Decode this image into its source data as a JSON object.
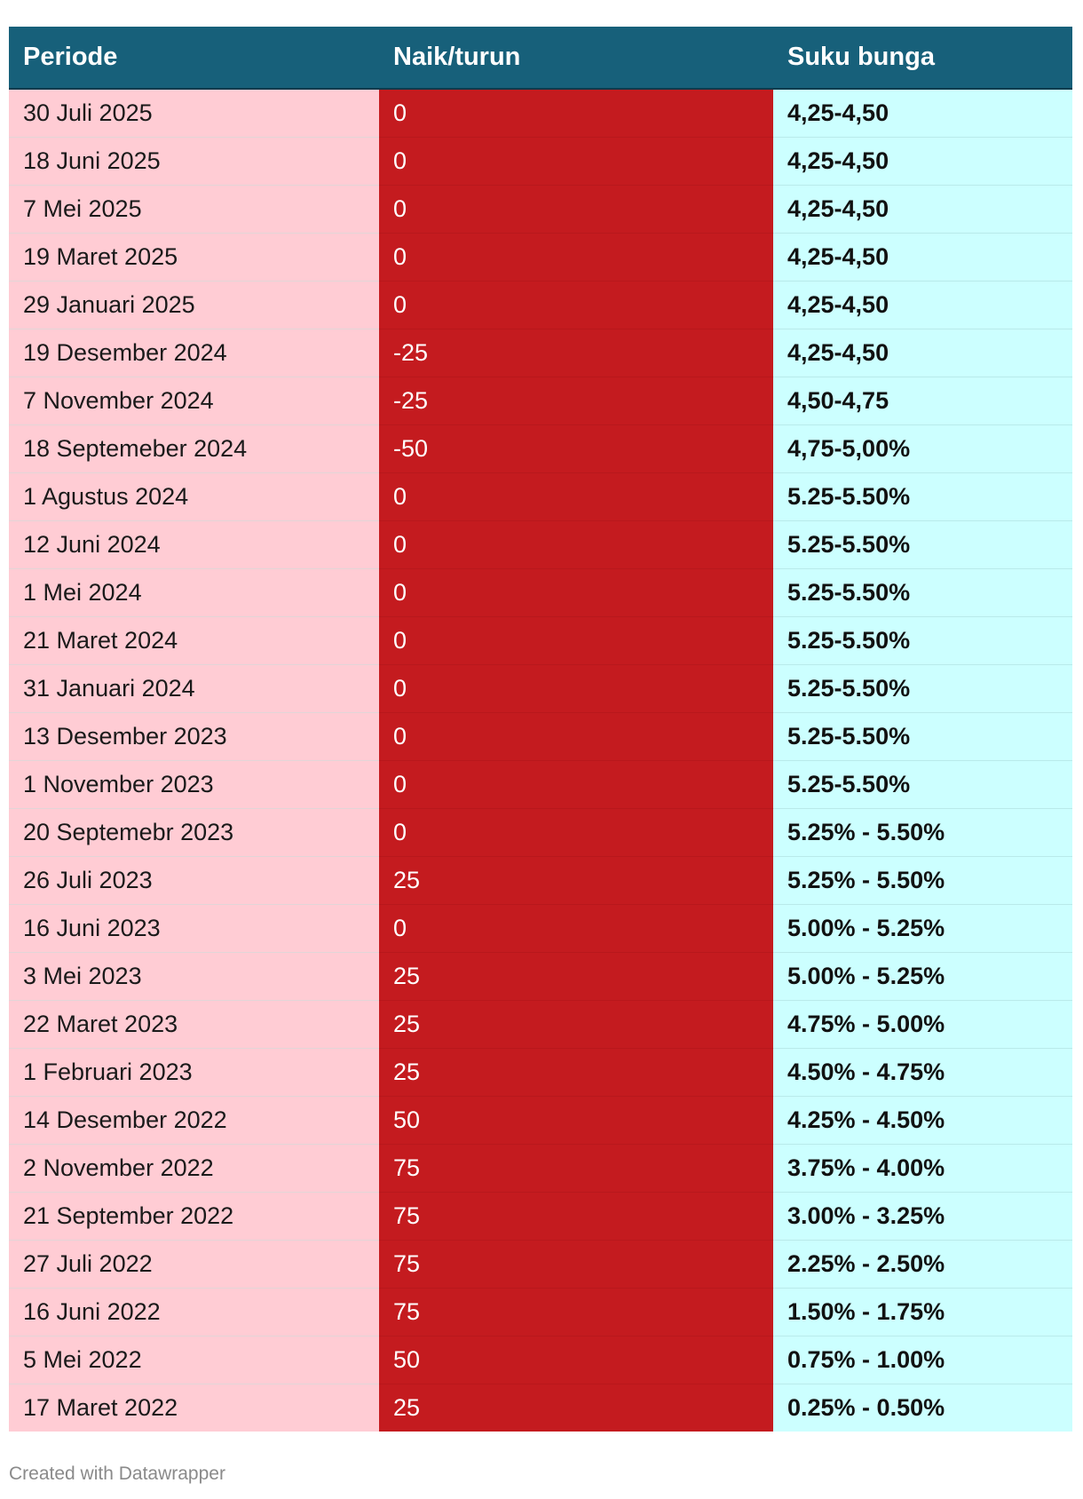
{
  "chart_data": {
    "type": "table",
    "columns": [
      "Periode",
      "Naik/turun",
      "Suku bunga"
    ],
    "rows": [
      {
        "period": "30 Juli 2025",
        "change": "0",
        "rate": "4,25-4,50"
      },
      {
        "period": "18 Juni 2025",
        "change": "0",
        "rate": "4,25-4,50"
      },
      {
        "period": "7 Mei 2025",
        "change": "0",
        "rate": "4,25-4,50"
      },
      {
        "period": "19 Maret 2025",
        "change": "0",
        "rate": "4,25-4,50"
      },
      {
        "period": "29 Januari 2025",
        "change": "0",
        "rate": "4,25-4,50"
      },
      {
        "period": "19 Desember 2024",
        "change": "-25",
        "rate": "4,25-4,50"
      },
      {
        "period": "7 November 2024",
        "change": "-25",
        "rate": "4,50-4,75"
      },
      {
        "period": "18 Septemeber 2024",
        "change": "-50",
        "rate": "4,75-5,00%"
      },
      {
        "period": "1 Agustus 2024",
        "change": "0",
        "rate": "5.25-5.50%"
      },
      {
        "period": "12 Juni 2024",
        "change": "0",
        "rate": "5.25-5.50%"
      },
      {
        "period": "1 Mei 2024",
        "change": "0",
        "rate": "5.25-5.50%"
      },
      {
        "period": "21 Maret 2024",
        "change": "0",
        "rate": "5.25-5.50%"
      },
      {
        "period": "31 Januari 2024",
        "change": "0",
        "rate": "5.25-5.50%"
      },
      {
        "period": "13 Desember 2023",
        "change": "0",
        "rate": "5.25-5.50%"
      },
      {
        "period": "1 November 2023",
        "change": "0",
        "rate": "5.25-5.50%"
      },
      {
        "period": "20 Septemebr 2023",
        "change": "0",
        "rate": "5.25% - 5.50%"
      },
      {
        "period": "26 Juli 2023",
        "change": "25",
        "rate": "5.25% - 5.50%"
      },
      {
        "period": "16 Juni 2023",
        "change": "0",
        "rate": "5.00% - 5.25%"
      },
      {
        "period": "3 Mei 2023",
        "change": "25",
        "rate": "5.00% - 5.25%"
      },
      {
        "period": "22 Maret 2023",
        "change": "25",
        "rate": "4.75% - 5.00%"
      },
      {
        "period": "1 Februari 2023",
        "change": "25",
        "rate": "4.50% - 4.75%"
      },
      {
        "period": "14 Desember 2022",
        "change": "50",
        "rate": "4.25% - 4.50%"
      },
      {
        "period": "2 November 2022",
        "change": "75",
        "rate": "3.75% - 4.00%"
      },
      {
        "period": "21 September 2022",
        "change": "75",
        "rate": "3.00% - 3.25%"
      },
      {
        "period": "27 Juli 2022",
        "change": "75",
        "rate": "2.25% - 2.50%"
      },
      {
        "period": "16 Juni 2022",
        "change": "75",
        "rate": "1.50% - 1.75%"
      },
      {
        "period": "5 Mei 2022",
        "change": "50",
        "rate": "0.75% - 1.00%"
      },
      {
        "period": "17 Maret 2022",
        "change": "25",
        "rate": "0.25% - 0.50%"
      }
    ],
    "colors": {
      "header": "#17607a",
      "period_column": "#ffccd4",
      "change_column": "#c41b1f",
      "rate_column": "#ccffff"
    }
  },
  "footer": {
    "credit": "Created with Datawrapper"
  }
}
